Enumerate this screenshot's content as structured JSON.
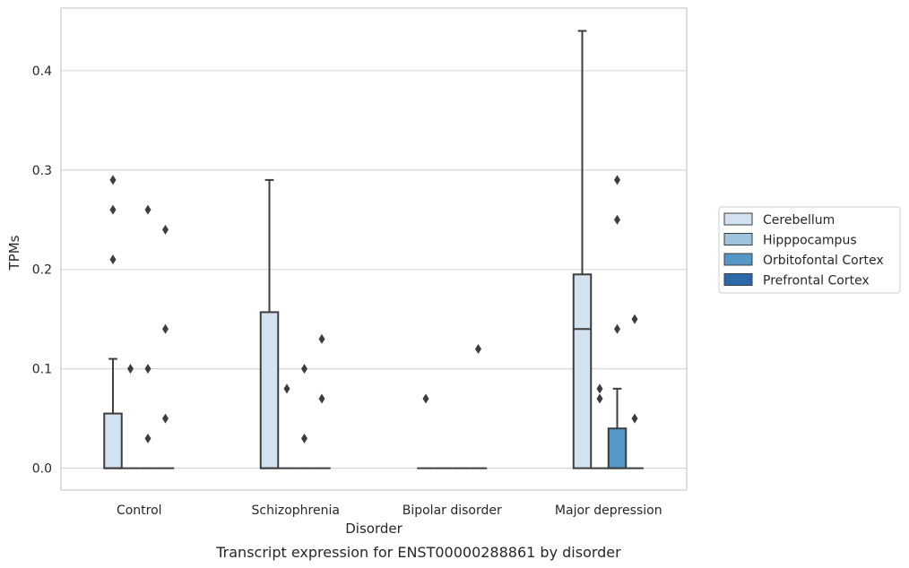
{
  "caption": "Transcript expression for ENST00000288861 by disorder",
  "chart_data": {
    "type": "box",
    "xlabel": "Disorder",
    "ylabel": "TPMs",
    "ylim": [
      -0.022,
      0.463
    ],
    "yticks": [
      0.0,
      0.1,
      0.2,
      0.3,
      0.4
    ],
    "ytick_labels": [
      "0.0",
      "0.1",
      "0.2",
      "0.3",
      "0.4"
    ],
    "grid": "horizontal",
    "legend_position": "right-center",
    "categories": [
      "Control",
      "Schizophrenia",
      "Bipolar disorder",
      "Major depression"
    ],
    "series": [
      {
        "name": "Cerebellum",
        "color": "#d3e2f0",
        "boxes": [
          {
            "q1": 0,
            "median": 0,
            "q3": 0.055,
            "whisker_low": 0,
            "whisker_high": 0.11,
            "outliers": [
              0.21,
              0.26,
              0.29
            ]
          },
          {
            "q1": 0,
            "median": 0,
            "q3": 0.157,
            "whisker_low": 0,
            "whisker_high": 0.29,
            "outliers": []
          },
          {
            "q1": 0,
            "median": 0,
            "q3": 0,
            "whisker_low": 0,
            "whisker_high": 0,
            "outliers": [
              0.07
            ]
          },
          {
            "q1": 0,
            "median": 0.14,
            "q3": 0.195,
            "whisker_low": 0,
            "whisker_high": 0.44,
            "outliers": []
          }
        ]
      },
      {
        "name": "Hipppocampus",
        "color": "#9ec3de",
        "boxes": [
          {
            "q1": 0,
            "median": 0,
            "q3": 0,
            "whisker_low": 0,
            "whisker_high": 0,
            "outliers": [
              0.1
            ]
          },
          {
            "q1": 0,
            "median": 0,
            "q3": 0,
            "whisker_low": 0,
            "whisker_high": 0,
            "outliers": [
              0.08
            ]
          },
          {
            "q1": 0,
            "median": 0,
            "q3": 0,
            "whisker_low": 0,
            "whisker_high": 0,
            "outliers": []
          },
          {
            "q1": 0,
            "median": 0,
            "q3": 0,
            "whisker_low": 0,
            "whisker_high": 0,
            "outliers": [
              0.07,
              0.08
            ]
          }
        ]
      },
      {
        "name": "Orbitofontal Cortex",
        "color": "#5597c6",
        "boxes": [
          {
            "q1": 0,
            "median": 0,
            "q3": 0,
            "whisker_low": 0,
            "whisker_high": 0,
            "outliers": [
              0.03,
              0.1,
              0.26
            ]
          },
          {
            "q1": 0,
            "median": 0,
            "q3": 0,
            "whisker_low": 0,
            "whisker_high": 0,
            "outliers": [
              0.03,
              0.1
            ]
          },
          {
            "q1": 0,
            "median": 0,
            "q3": 0,
            "whisker_low": 0,
            "whisker_high": 0,
            "outliers": []
          },
          {
            "q1": 0,
            "median": 0,
            "q3": 0.04,
            "whisker_low": 0,
            "whisker_high": 0.08,
            "outliers": [
              0.14,
              0.25,
              0.29
            ]
          }
        ]
      },
      {
        "name": "Prefrontal Cortex",
        "color": "#2a6aab",
        "boxes": [
          {
            "q1": 0,
            "median": 0,
            "q3": 0,
            "whisker_low": 0,
            "whisker_high": 0,
            "outliers": [
              0.05,
              0.14,
              0.24
            ]
          },
          {
            "q1": 0,
            "median": 0,
            "q3": 0,
            "whisker_low": 0,
            "whisker_high": 0,
            "outliers": [
              0.07,
              0.13
            ]
          },
          {
            "q1": 0,
            "median": 0,
            "q3": 0,
            "whisker_low": 0,
            "whisker_high": 0,
            "outliers": [
              0.12
            ]
          },
          {
            "q1": 0,
            "median": 0,
            "q3": 0,
            "whisker_low": 0,
            "whisker_high": 0,
            "outliers": [
              0.05,
              0.15
            ]
          }
        ]
      }
    ]
  }
}
